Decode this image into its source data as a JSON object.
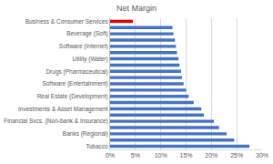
{
  "chart_data": {
    "type": "bar",
    "title": "Net Margin",
    "orientation": "horizontal",
    "categories": [
      "Business & Consumer Services",
      null,
      "Beverage (Soft)",
      null,
      "Software (Internet)",
      null,
      "Utility (Water)",
      null,
      "Drugs (Pharmaceutical)",
      null,
      "Software (Entertainment)",
      null,
      "Real Estate (Development)",
      null,
      "Investments & Asset Management",
      null,
      "Financial Svcs. (Non-bank & Insurance)",
      null,
      "Banks (Regional)",
      null,
      "Tobacco"
    ],
    "values": [
      4.5,
      12.3,
      12.5,
      12.8,
      13.0,
      13.2,
      13.5,
      13.7,
      14.0,
      14.2,
      14.5,
      15.0,
      15.5,
      16.5,
      18.0,
      18.5,
      20.5,
      21.5,
      23.0,
      24.5,
      27.5
    ],
    "colors": [
      "#e00000",
      "#4472c4",
      "#4472c4",
      "#4472c4",
      "#4472c4",
      "#4472c4",
      "#4472c4",
      "#4472c4",
      "#4472c4",
      "#4472c4",
      "#4472c4",
      "#4472c4",
      "#4472c4",
      "#4472c4",
      "#4472c4",
      "#4472c4",
      "#4472c4",
      "#4472c4",
      "#4472c4",
      "#4472c4",
      "#4472c4"
    ],
    "xlim": [
      0,
      30
    ],
    "xticks": [
      {
        "value": 0,
        "label": "0%"
      },
      {
        "value": 5,
        "label": "5%"
      },
      {
        "value": 10,
        "label": "10%"
      },
      {
        "value": 15,
        "label": "15%"
      },
      {
        "value": 20,
        "label": "20%"
      },
      {
        "value": 25,
        "label": "25%"
      },
      {
        "value": 30,
        "label": "30%"
      }
    ],
    "grid": true
  }
}
